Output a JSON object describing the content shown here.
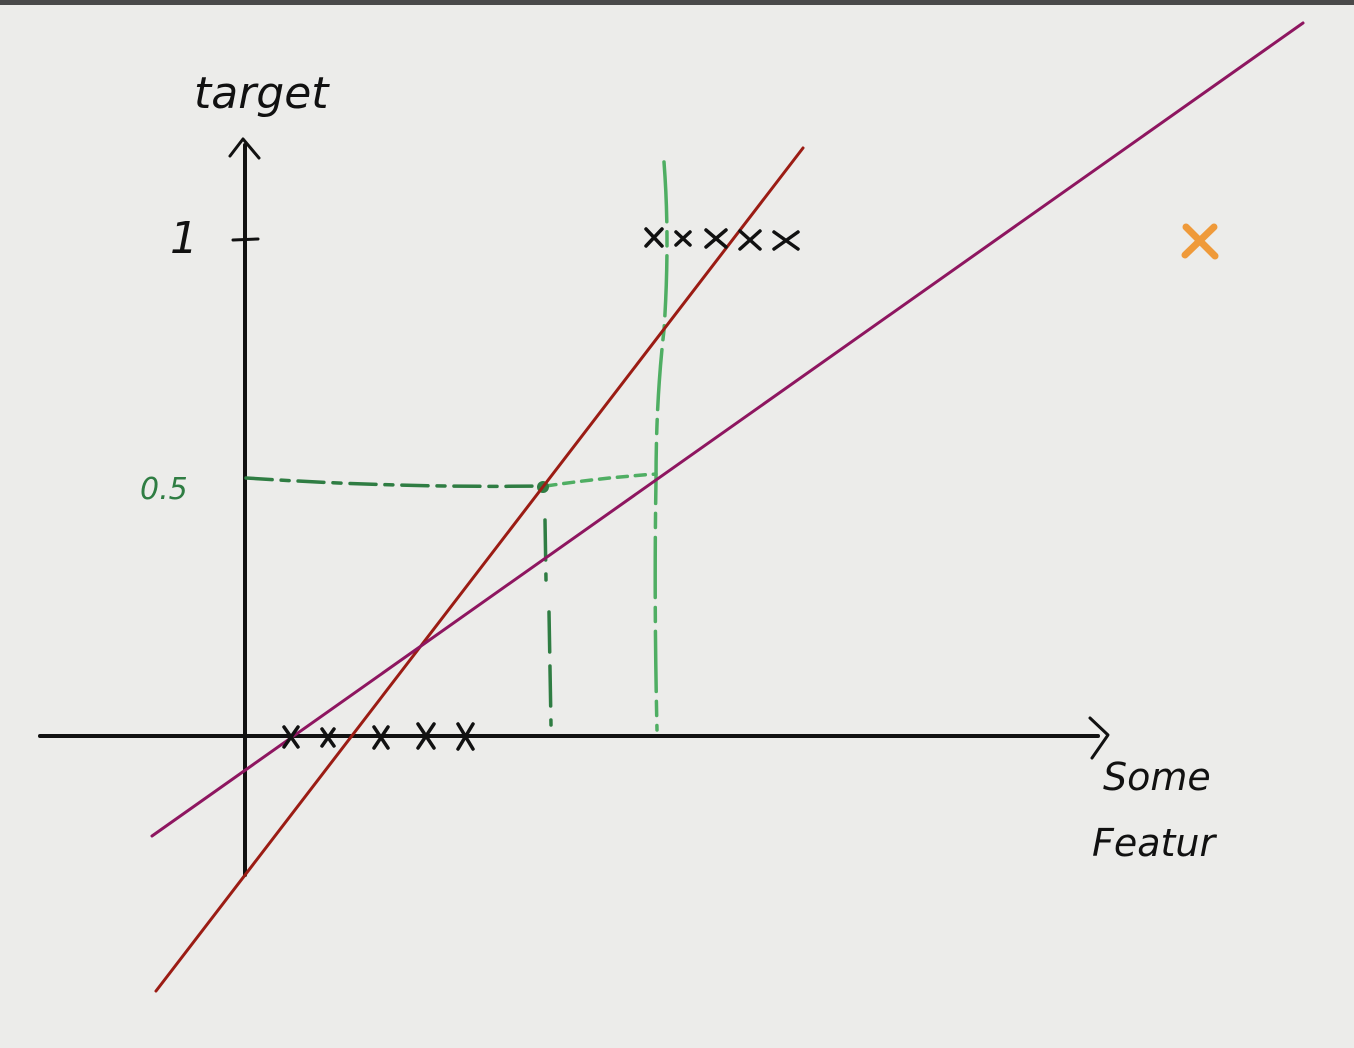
{
  "labels": {
    "y_axis": "target",
    "x_axis_line1": "Some",
    "x_axis_line2": "Featur",
    "tick_one": "1",
    "tick_half": "0.5"
  },
  "colors": {
    "background": "#ececea",
    "axis": "#111111",
    "red_line": "#9b1c14",
    "purple_line": "#8e1660",
    "green_guide": "#2f7d43",
    "green_light": "#4fae63",
    "outlier_marker": "#ef9a3a",
    "data_marker": "#111111"
  },
  "markers": {
    "class0_count": 5,
    "class1_count": 5,
    "outlier_count": 1
  }
}
